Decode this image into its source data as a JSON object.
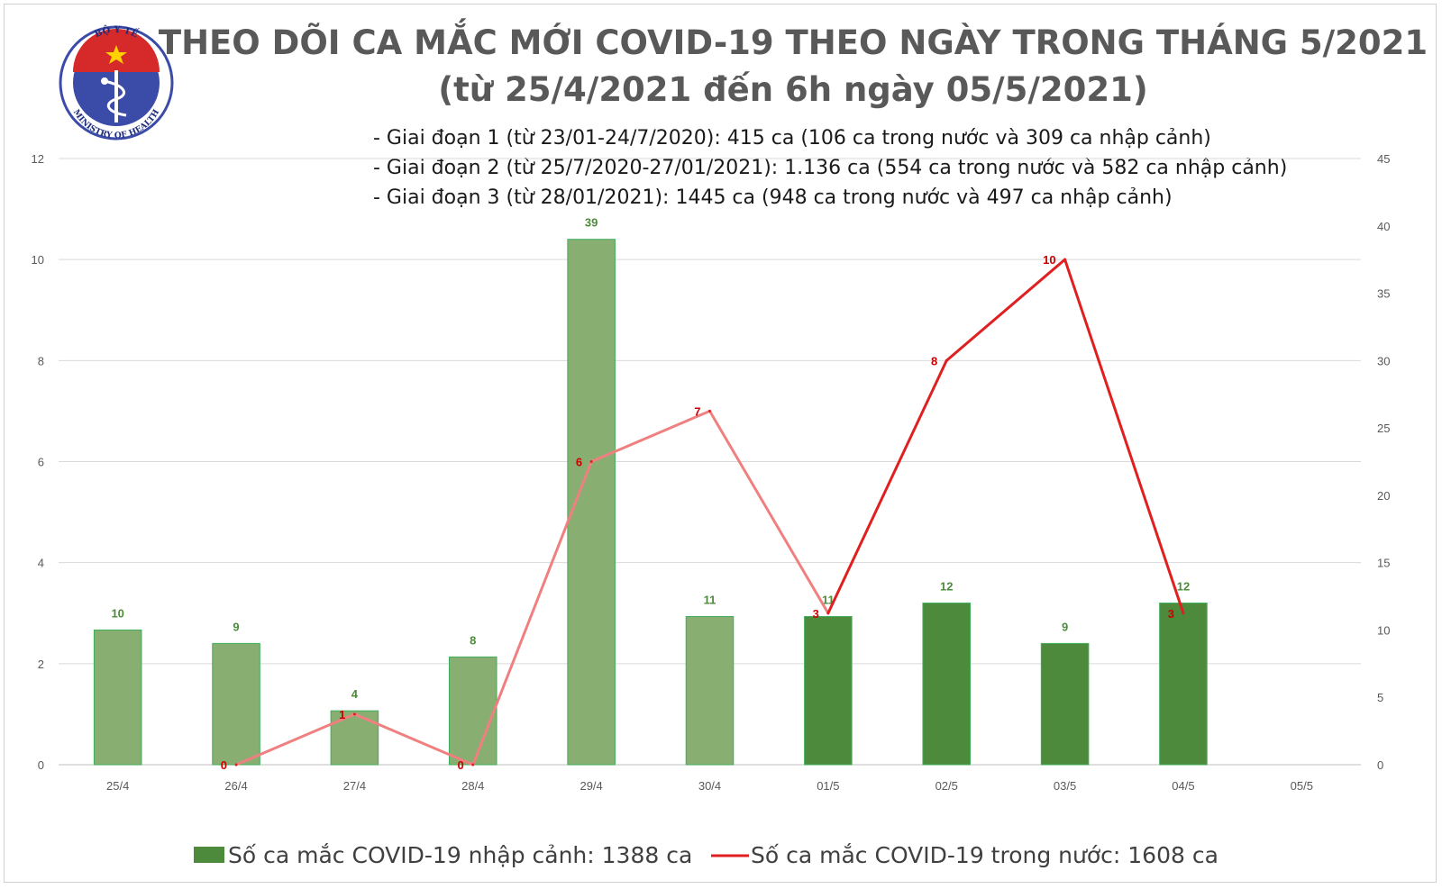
{
  "logo": {
    "top_text": "BỘ Y TẾ",
    "bottom_text": "MINISTRY OF HEALTH",
    "colors": {
      "ring": "#3b4ba8",
      "red": "#d62a2a",
      "white": "#ffffff"
    }
  },
  "notes": [
    "- Giai đoạn 1 (từ 23/01-24/7/2020): 415 ca (106 ca trong nước và 309 ca nhập cảnh)",
    "- Giai đoạn 2 (từ 25/7/2020-27/01/2021): 1.136 ca (554 ca trong nước và 582 ca nhập cảnh)",
    "- Giai đoạn 3 (từ 28/01/2021): 1445 ca (948 ca trong nước và 497 ca nhập cảnh)"
  ],
  "chart_data": {
    "type": "bar",
    "title": "THEO DÕI CA MẮC MỚI COVID-19 THEO NGÀY TRONG THÁNG 5/2021",
    "subtitle": "(từ 25/4/2021 đến 6h ngày 05/5/2021)",
    "categories": [
      "25/4",
      "26/4",
      "27/4",
      "28/4",
      "29/4",
      "30/4",
      "01/5",
      "02/5",
      "03/5",
      "04/5",
      "05/5"
    ],
    "series": [
      {
        "name": "Số ca mắc COVID-19 nhập cảnh: 1388 ca",
        "type": "bar",
        "axis": "right",
        "values": [
          10,
          9,
          4,
          8,
          39,
          11,
          11,
          12,
          9,
          12,
          null
        ],
        "labels": [
          "10",
          "9",
          "4",
          "8",
          "39",
          "11",
          "11",
          "12",
          "9",
          "12",
          ""
        ],
        "colors": [
          "#88ae72",
          "#88ae72",
          "#88ae72",
          "#88ae72",
          "#88ae72",
          "#88ae72",
          "#4e8a3c",
          "#4e8a3c",
          "#4e8a3c",
          "#4e8a3c",
          "#4e8a3c"
        ]
      },
      {
        "name": "Số ca mắc COVID-19 trong nước: 1608 ca",
        "type": "line",
        "axis": "left",
        "values": [
          null,
          0,
          1,
          0,
          6,
          7,
          3,
          8,
          10,
          3,
          null
        ],
        "labels": [
          "",
          "0",
          "1",
          "0",
          "6",
          "7",
          "3",
          "8",
          "10",
          "3",
          ""
        ],
        "color_past": "#f08080",
        "color": "#e02020",
        "highlight_from_index": 6
      }
    ],
    "y_left": {
      "min": 0,
      "max": 12,
      "ticks": [
        "0",
        "2",
        "4",
        "6",
        "8",
        "10",
        "12"
      ]
    },
    "y_right": {
      "min": 0,
      "max": 45,
      "ticks": [
        "0",
        "5",
        "10",
        "15",
        "20",
        "25",
        "30",
        "35",
        "40",
        "45"
      ]
    },
    "grid": true,
    "legend_position": "bottom"
  }
}
